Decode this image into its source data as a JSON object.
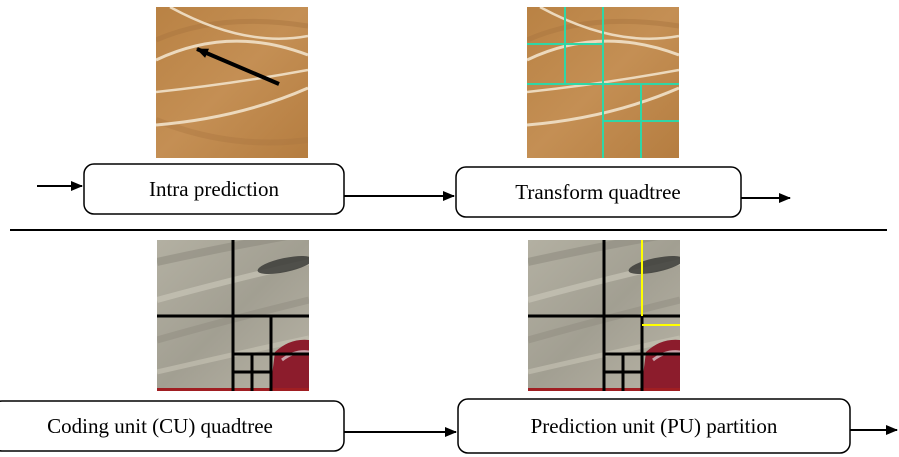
{
  "top_row": {
    "intra_prediction_label": "Intra prediction",
    "transform_quadtree_label": "Transform quadtree"
  },
  "bottom_row": {
    "coding_unit_label": "Coding unit (CU) quadtree",
    "prediction_unit_label": "Prediction unit (PU) partition"
  },
  "colors": {
    "wood": "#c08a4e",
    "wood_dark": "#a97640",
    "court_line": "#ecd9bd",
    "transform_grid": "#2fd6a6",
    "cu_grid": "#000000",
    "pu_partition": "#ffff00",
    "road_base": "#a8a597",
    "car_red": "#8c1c2c"
  }
}
